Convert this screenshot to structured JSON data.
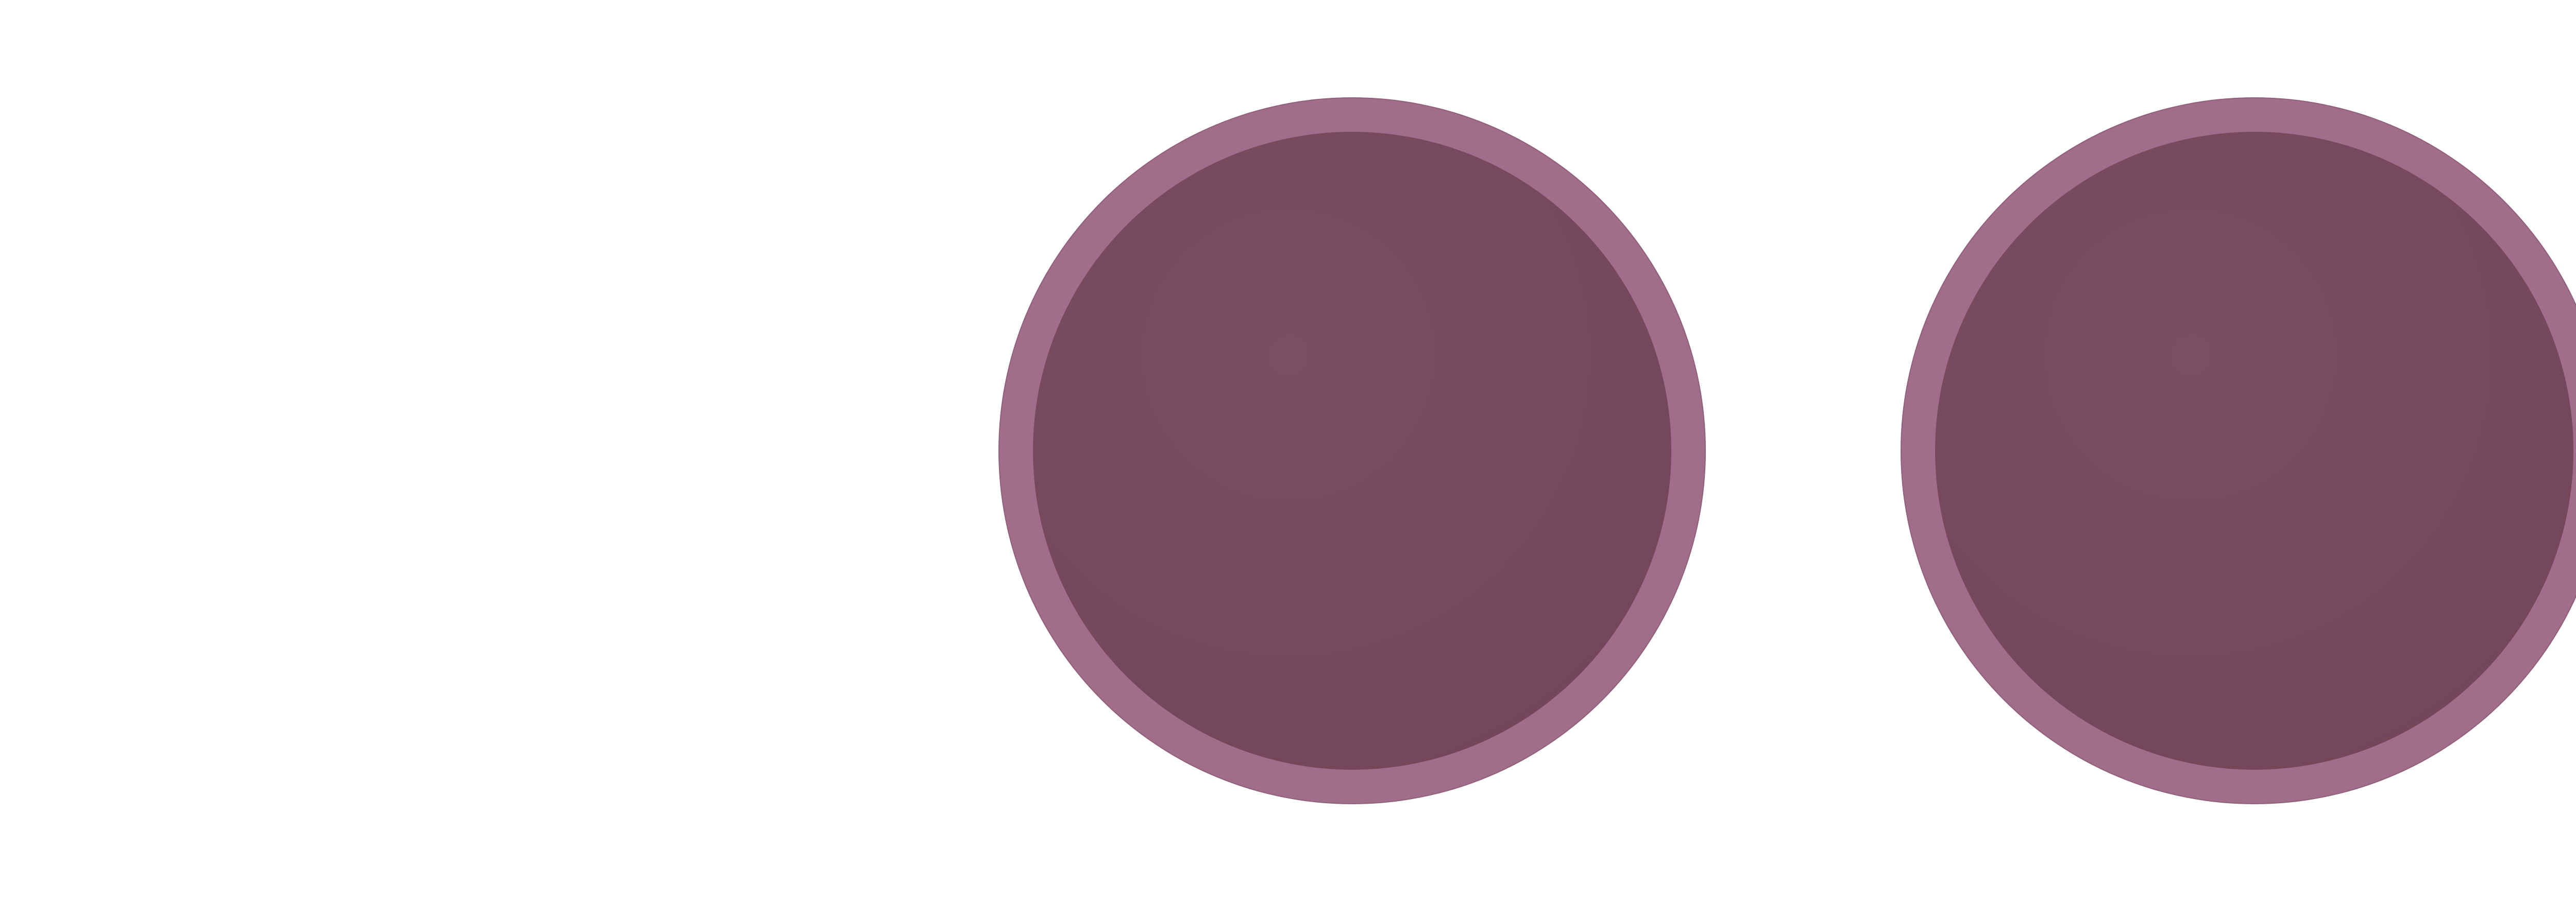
{
  "colors": {
    "background": "#ffffff",
    "disc_rim": "#a06d8a",
    "disc_fill": "#77485d"
  },
  "slots": [
    {
      "state": "empty"
    },
    {
      "state": "filled"
    },
    {
      "state": "filled"
    }
  ]
}
